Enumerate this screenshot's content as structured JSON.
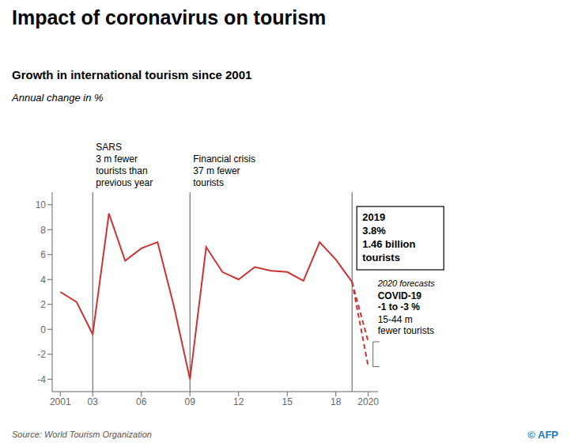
{
  "chart_data": {
    "type": "line",
    "title": "Impact of coronavirus on tourism",
    "subtitle": "Growth in international tourism since 2001",
    "ylabel": "Annual change in %",
    "source": "Source: World Tourism Organization",
    "credit": "© AFP",
    "series": [
      {
        "x": [
          2001,
          2002,
          2003,
          2004,
          2005,
          2006,
          2007,
          2008,
          2009,
          2010,
          2011,
          2012,
          2013,
          2014,
          2015,
          2016,
          2017,
          2018,
          2019
        ],
        "values": [
          3.0,
          2.2,
          -0.4,
          9.3,
          5.5,
          6.5,
          7.0,
          1.9,
          -4.0,
          6.6,
          4.6,
          4.0,
          5.0,
          4.7,
          4.6,
          3.9,
          7.0,
          5.6,
          3.8
        ],
        "color": "#cc3333",
        "line_style": "solid"
      },
      {
        "x": [
          2019,
          2020
        ],
        "values": [
          3.8,
          -1.0
        ],
        "color": "#cc3333",
        "line_style": "dashed"
      },
      {
        "x": [
          2019,
          2020
        ],
        "values": [
          3.8,
          -3.0
        ],
        "color": "#cc3333",
        "line_style": "dashed"
      }
    ],
    "xlim": [
      2000.5,
      2020.6
    ],
    "xticks": [
      2001,
      {
        "value": 2003,
        "label": "03"
      },
      {
        "value": 2006,
        "label": "06"
      },
      {
        "value": 2009,
        "label": "09"
      },
      {
        "value": 2012,
        "label": "12"
      },
      {
        "value": 2015,
        "label": "15"
      },
      {
        "value": 2018,
        "label": "18"
      },
      2020
    ],
    "ylim": [
      -5,
      11
    ],
    "yticks": [
      -4,
      -2,
      0,
      2,
      4,
      6,
      8,
      10
    ],
    "grid": false,
    "annotations": [
      {
        "x": 2003,
        "text": "SARS\n3 m fewer\ntourists than\nprevious year"
      },
      {
        "x": 2009,
        "text": "Financial crisis\n37 m fewer\ntourists"
      }
    ],
    "box_annotation": {
      "x": 2019,
      "text": "2019\n3.8%\n1.46 billion\ntourists"
    },
    "forecast_labels": [
      "2020 forecasts",
      "COVID-19\n-1 to -3 %",
      "15-44 m\nfewer tourists"
    ]
  }
}
